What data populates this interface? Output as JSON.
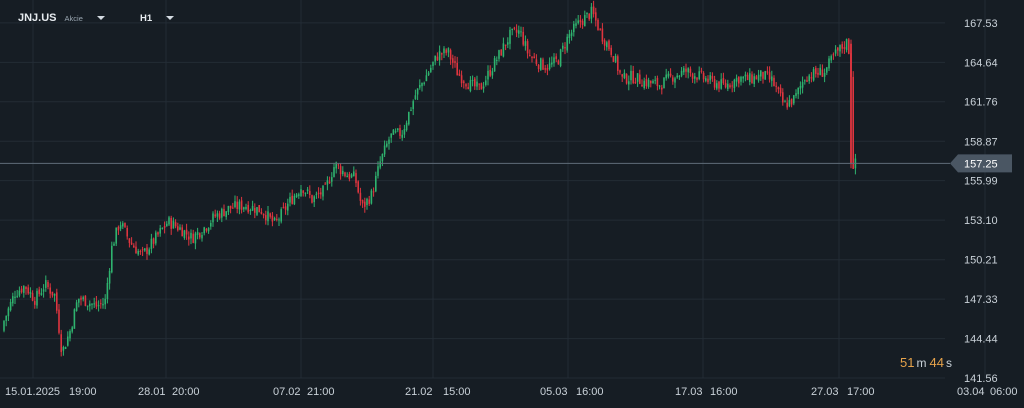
{
  "header": {
    "symbol": "JNJ.US",
    "instrument_type": "Akcie",
    "timeframe": "H1"
  },
  "countdown": {
    "minutes": "51",
    "minutes_unit": "m",
    "seconds": "44",
    "seconds_unit": "s"
  },
  "colors": {
    "background": "#161d24",
    "grid": "#232c35",
    "up": "#2fb36f",
    "down": "#e0353f",
    "price_line": "#5f6c78",
    "price_tag": "#4a5663",
    "axis_text": "#c9d1d8"
  },
  "chart_data": {
    "type": "candlestick",
    "symbol": "JNJ.US",
    "interval": "H1",
    "current_price": 157.25,
    "ylim": [
      141.56,
      169.2
    ],
    "y_ticks": [
      "167.53",
      "164.64",
      "161.76",
      "158.87",
      "155.99",
      "153.10",
      "150.21",
      "147.33",
      "144.44",
      "141.56"
    ],
    "x_tick_labels": [
      "15.01.2025",
      "19:00",
      "28.01",
      "20:00",
      "07.02",
      "21:00",
      "21.02",
      "15:00",
      "05.03",
      "16:00",
      "17.03",
      "16:00",
      "27.03",
      "17:00",
      "03.04",
      "06:00"
    ],
    "close_path": [
      {
        "x": 0,
        "v": 145.0
      },
      {
        "x": 15,
        "v": 147.8
      },
      {
        "x": 25,
        "v": 148.3
      },
      {
        "x": 35,
        "v": 147.3
      },
      {
        "x": 45,
        "v": 148.4
      },
      {
        "x": 55,
        "v": 147.6
      },
      {
        "x": 62,
        "v": 143.4
      },
      {
        "x": 70,
        "v": 145.0
      },
      {
        "x": 78,
        "v": 147.4
      },
      {
        "x": 86,
        "v": 147.2
      },
      {
        "x": 96,
        "v": 146.8
      },
      {
        "x": 105,
        "v": 147.1
      },
      {
        "x": 112,
        "v": 151.2
      },
      {
        "x": 120,
        "v": 153.0
      },
      {
        "x": 130,
        "v": 151.5
      },
      {
        "x": 142,
        "v": 150.5
      },
      {
        "x": 155,
        "v": 151.7
      },
      {
        "x": 168,
        "v": 153.0
      },
      {
        "x": 180,
        "v": 152.5
      },
      {
        "x": 192,
        "v": 151.8
      },
      {
        "x": 205,
        "v": 152.6
      },
      {
        "x": 215,
        "v": 153.4
      },
      {
        "x": 230,
        "v": 154.0
      },
      {
        "x": 245,
        "v": 154.2
      },
      {
        "x": 262,
        "v": 153.8
      },
      {
        "x": 275,
        "v": 152.8
      },
      {
        "x": 290,
        "v": 154.5
      },
      {
        "x": 302,
        "v": 155.6
      },
      {
        "x": 312,
        "v": 154.6
      },
      {
        "x": 325,
        "v": 155.3
      },
      {
        "x": 335,
        "v": 157.2
      },
      {
        "x": 345,
        "v": 156.5
      },
      {
        "x": 355,
        "v": 156.2
      },
      {
        "x": 362,
        "v": 154.0
      },
      {
        "x": 372,
        "v": 155.0
      },
      {
        "x": 380,
        "v": 157.3
      },
      {
        "x": 390,
        "v": 159.2
      },
      {
        "x": 402,
        "v": 159.5
      },
      {
        "x": 415,
        "v": 162.2
      },
      {
        "x": 425,
        "v": 163.5
      },
      {
        "x": 438,
        "v": 165.2
      },
      {
        "x": 448,
        "v": 165.4
      },
      {
        "x": 458,
        "v": 163.8
      },
      {
        "x": 470,
        "v": 163.0
      },
      {
        "x": 480,
        "v": 162.7
      },
      {
        "x": 490,
        "v": 164.0
      },
      {
        "x": 500,
        "v": 165.3
      },
      {
        "x": 510,
        "v": 166.6
      },
      {
        "x": 520,
        "v": 166.9
      },
      {
        "x": 528,
        "v": 165.3
      },
      {
        "x": 538,
        "v": 164.6
      },
      {
        "x": 548,
        "v": 164.3
      },
      {
        "x": 558,
        "v": 164.8
      },
      {
        "x": 568,
        "v": 166.5
      },
      {
        "x": 580,
        "v": 167.6
      },
      {
        "x": 592,
        "v": 168.3
      },
      {
        "x": 602,
        "v": 166.6
      },
      {
        "x": 612,
        "v": 165.4
      },
      {
        "x": 622,
        "v": 163.4
      },
      {
        "x": 632,
        "v": 163.6
      },
      {
        "x": 645,
        "v": 163.2
      },
      {
        "x": 660,
        "v": 163.0
      },
      {
        "x": 672,
        "v": 163.6
      },
      {
        "x": 686,
        "v": 164.0
      },
      {
        "x": 700,
        "v": 163.6
      },
      {
        "x": 712,
        "v": 163.2
      },
      {
        "x": 725,
        "v": 162.9
      },
      {
        "x": 738,
        "v": 163.5
      },
      {
        "x": 750,
        "v": 163.4
      },
      {
        "x": 762,
        "v": 163.7
      },
      {
        "x": 772,
        "v": 163.3
      },
      {
        "x": 784,
        "v": 161.5
      },
      {
        "x": 795,
        "v": 162.0
      },
      {
        "x": 805,
        "v": 163.6
      },
      {
        "x": 815,
        "v": 163.8
      },
      {
        "x": 825,
        "v": 164.0
      },
      {
        "x": 835,
        "v": 165.2
      },
      {
        "x": 848,
        "v": 166.2
      },
      {
        "x": 851,
        "v": 163.8
      },
      {
        "x": 853,
        "v": 157.2
      },
      {
        "x": 858,
        "v": 157.25
      }
    ]
  }
}
